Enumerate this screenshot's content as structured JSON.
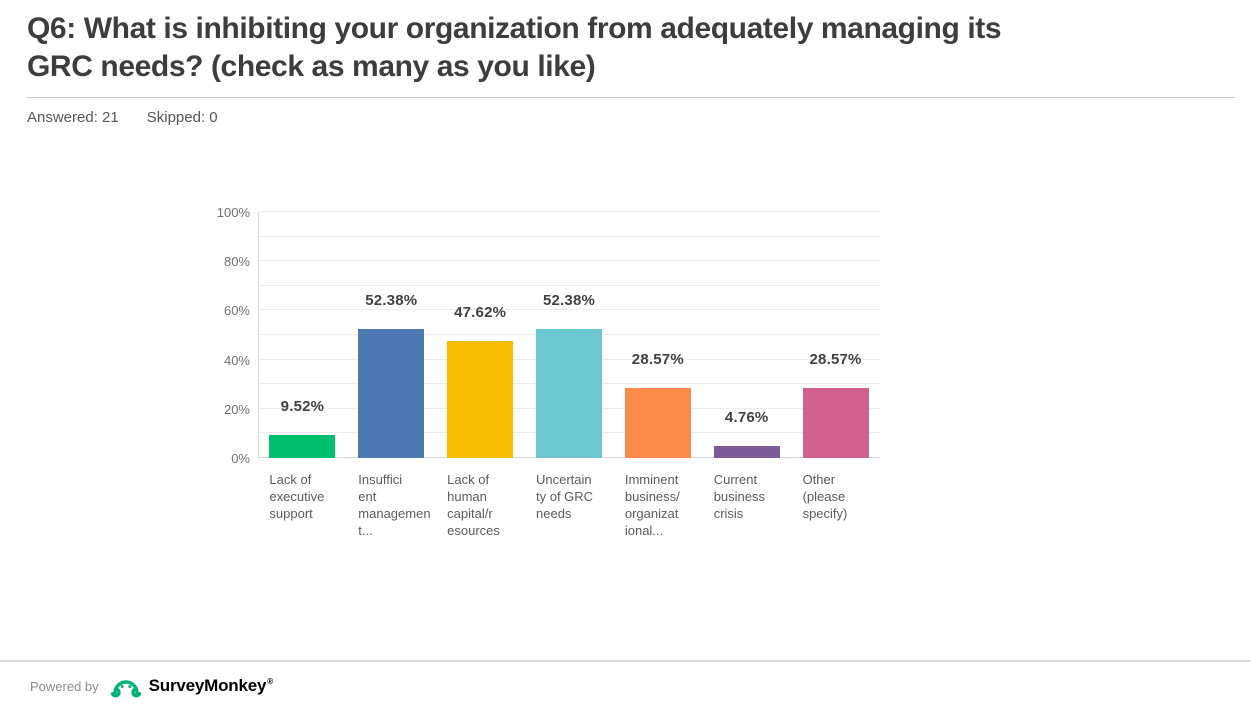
{
  "header": {
    "title": "Q6: What is inhibiting your organization from adequately managing its GRC needs? (check as many as you like)",
    "answered_label": "Answered: 21",
    "skipped_label": "Skipped: 0"
  },
  "chart_data": {
    "type": "bar",
    "title": "Q6: What is inhibiting your organization from adequately managing its GRC needs? (check as many as you like)",
    "answered": 21,
    "skipped": 0,
    "categories": [
      "Lack of executive support",
      "Insufficient management...",
      "Lack of human capital/resources",
      "Uncertainty of GRC needs",
      "Imminent business/organizational...",
      "Current business crisis",
      "Other (please specify)"
    ],
    "category_display_lines": [
      [
        "Lack of",
        "executive",
        "support"
      ],
      [
        "Insuffici",
        "ent",
        "managemen",
        "t..."
      ],
      [
        "Lack of",
        "human",
        "capital/r",
        "esources"
      ],
      [
        "Uncertain",
        "ty of GRC",
        "needs"
      ],
      [
        "Imminent",
        "business/",
        "organizat",
        "ional..."
      ],
      [
        "Current",
        "business",
        "crisis"
      ],
      [
        "Other",
        "(please",
        "specify)"
      ]
    ],
    "values": [
      9.52,
      52.38,
      47.62,
      52.38,
      28.57,
      4.76,
      28.57
    ],
    "value_labels": [
      "9.52%",
      "52.38%",
      "47.62%",
      "52.38%",
      "28.57%",
      "4.76%",
      "28.57%"
    ],
    "bar_colors": [
      "#00bf6f",
      "#4d79b3",
      "#f7bd00",
      "#6cc8ce",
      "#fc8b4b",
      "#7a5a99",
      "#d2608f"
    ],
    "xlabel": "",
    "ylabel": "",
    "ylim": [
      0,
      100
    ],
    "y_tick_values": [
      0,
      20,
      40,
      60,
      80,
      100
    ],
    "y_tick_labels": [
      "0%",
      "20%",
      "40%",
      "60%",
      "80%",
      "100%"
    ],
    "grid": "on",
    "grid_step": 10,
    "legend_position": "none"
  },
  "footer": {
    "powered_by": "Powered by",
    "brand": "SurveyMonkey",
    "brand_mark": "®",
    "brand_color": "#00b374"
  }
}
